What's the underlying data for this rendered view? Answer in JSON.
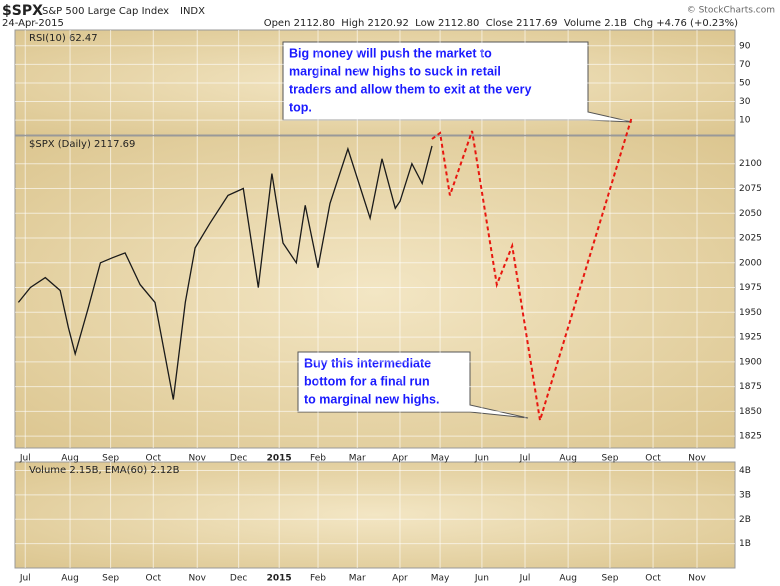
{
  "header": {
    "symbol": "$SPX",
    "name": "S&P 500 Large Cap Index",
    "exchange": "INDX",
    "date": "24-Apr-2015",
    "quote": "Open 2112.80  High 2120.92  Low 2112.80  Close 2117.69  Volume 2.1B  Chg +4.76 (+0.23%)",
    "logo": "© StockCharts.com"
  },
  "chart_data": [
    {
      "type": "line",
      "label": "RSI(10) 62.47",
      "ylim": [
        -6,
        107
      ],
      "yticks": [
        90,
        70,
        50,
        30,
        10
      ],
      "xlim": [
        -0.24,
        16.63
      ],
      "grid": true
    },
    {
      "type": "line",
      "label": "$SPX (Daily) 2117.69",
      "ylim": [
        1813,
        2128
      ],
      "yticks": [
        2100,
        2075,
        2050,
        2025,
        2000,
        1975,
        1950,
        1925,
        1900,
        1875,
        1850,
        1825
      ],
      "xlim": [
        -0.24,
        16.63
      ],
      "xticks": [
        {
          "value": 0,
          "label": "Jul"
        },
        {
          "value": 1.05,
          "label": "Aug"
        },
        {
          "value": 2.0,
          "label": "Sep"
        },
        {
          "value": 3.0,
          "label": "Oct"
        },
        {
          "value": 4.03,
          "label": "Nov"
        },
        {
          "value": 5.0,
          "label": "Dec"
        },
        {
          "value": 5.95,
          "label": "2015"
        },
        {
          "value": 6.86,
          "label": "Feb"
        },
        {
          "value": 7.78,
          "label": "Mar"
        },
        {
          "value": 8.78,
          "label": "Apr"
        },
        {
          "value": 9.72,
          "label": "May"
        },
        {
          "value": 10.7,
          "label": "Jun"
        },
        {
          "value": 11.71,
          "label": "Jul"
        },
        {
          "value": 12.72,
          "label": "Aug"
        },
        {
          "value": 13.7,
          "label": "Sep"
        },
        {
          "value": 14.71,
          "label": "Oct"
        },
        {
          "value": 15.74,
          "label": "Nov"
        }
      ],
      "grid": true,
      "series": [
        {
          "color": "#1a1a1a",
          "x": [
            -0.16,
            0.12,
            0.47,
            0.82,
            1.01,
            1.17,
            1.48,
            1.76,
            2.04,
            2.34,
            2.69,
            3.04,
            3.47,
            3.58,
            3.75,
            3.98,
            4.33,
            4.75,
            5.11,
            5.46,
            5.78,
            6.04,
            6.35,
            6.56,
            6.86,
            7.14,
            7.56,
            8.08,
            8.36,
            8.67,
            8.78,
            9.06,
            9.3,
            9.53
          ],
          "values": [
            1960,
            1975,
            1985,
            1972,
            1935,
            1908,
            1955,
            2000,
            2005,
            2010,
            1978,
            1960,
            1862,
            1900,
            1960,
            2015,
            2040,
            2068,
            2075,
            1975,
            2090,
            2020,
            2000,
            2058,
            1995,
            2060,
            2115,
            2045,
            2105,
            2055,
            2062,
            2100,
            2080,
            2118
          ],
          "style": "solid"
        },
        {
          "color": "#e8170f",
          "x": [
            9.53,
            9.72,
            9.95,
            10.47,
            11.05,
            11.41,
            12.06,
            14.22
          ],
          "values": [
            2125,
            2131,
            2068,
            2133,
            1978,
            2017,
            1841,
            2148
          ],
          "style": "dashed"
        }
      ],
      "annotations": [
        {
          "lines": [
            "Big money will push the market to",
            "marginal new highs to suck in retail",
            "traders and allow them to exit at the very",
            "top."
          ]
        },
        {
          "lines": [
            "Buy this intermediate",
            "bottom for a final run",
            "to marginal new highs."
          ]
        }
      ]
    },
    {
      "type": "bar",
      "label": "Volume 2.15B, EMA(60) 2.12B",
      "ylim": [
        0,
        4.35
      ],
      "yticks": [
        {
          "value": 4,
          "label": "4B"
        },
        {
          "value": 3,
          "label": "3B"
        },
        {
          "value": 2,
          "label": "2B"
        },
        {
          "value": 1,
          "label": "1B"
        }
      ],
      "xlim": [
        -0.24,
        16.63
      ],
      "xticks": [
        {
          "value": 0,
          "label": "Jul"
        },
        {
          "value": 1.05,
          "label": "Aug"
        },
        {
          "value": 2.0,
          "label": "Sep"
        },
        {
          "value": 3.0,
          "label": "Oct"
        },
        {
          "value": 4.03,
          "label": "Nov"
        },
        {
          "value": 5.0,
          "label": "Dec"
        },
        {
          "value": 5.95,
          "label": "2015"
        },
        {
          "value": 6.86,
          "label": "Feb"
        },
        {
          "value": 7.78,
          "label": "Mar"
        },
        {
          "value": 8.78,
          "label": "Apr"
        },
        {
          "value": 9.72,
          "label": "May"
        },
        {
          "value": 10.7,
          "label": "Jun"
        },
        {
          "value": 11.71,
          "label": "Jul"
        },
        {
          "value": 12.72,
          "label": "Aug"
        },
        {
          "value": 13.7,
          "label": "Sep"
        },
        {
          "value": 14.71,
          "label": "Oct"
        },
        {
          "value": 15.74,
          "label": "Nov"
        }
      ],
      "grid": true
    }
  ]
}
